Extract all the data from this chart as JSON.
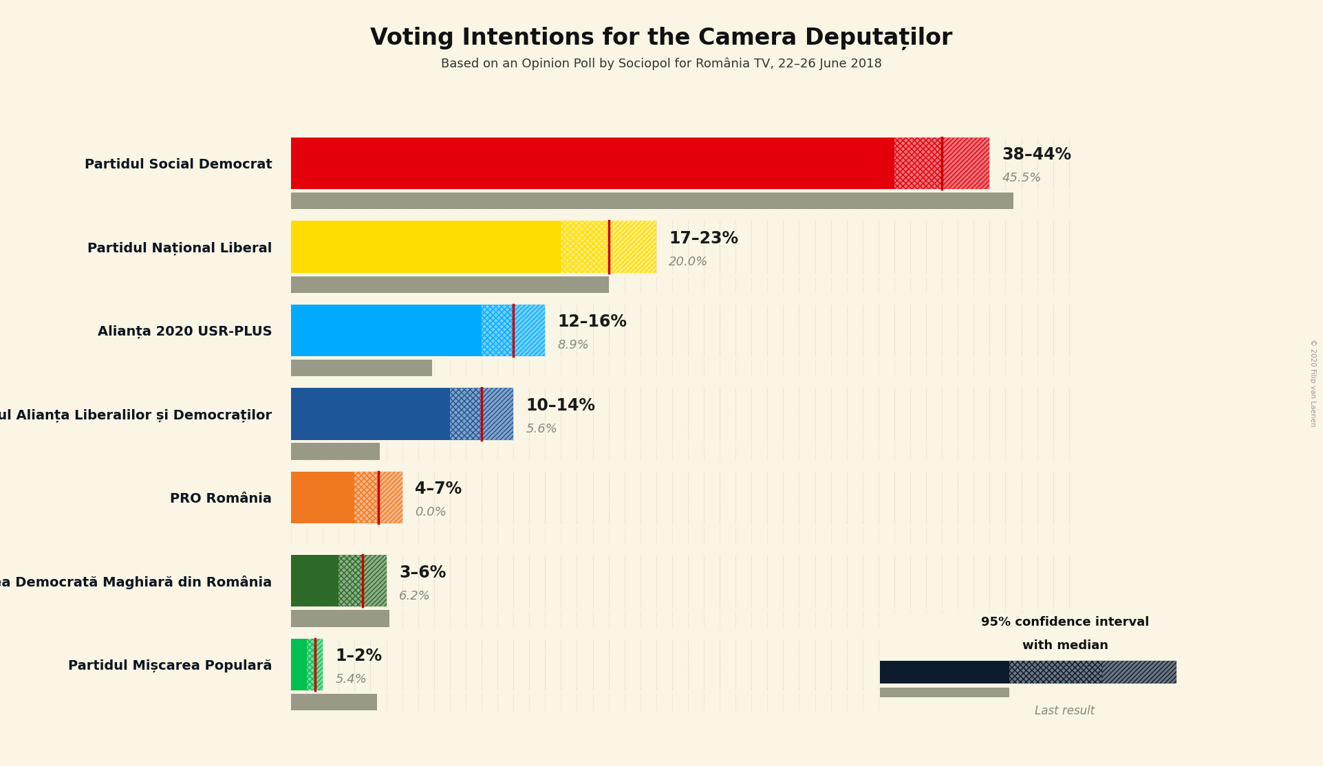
{
  "title": "Voting Intentions for the Camera Deputaților",
  "subtitle": "Based on an Opinion Poll by Sociopol for România TV, 22–26 June 2018",
  "copyright": "© 2020 Filip van Laenen",
  "background_color": "#faf5e4",
  "parties": [
    {
      "name": "Partidul Social Democrat",
      "color": "#e3000b",
      "ci_low": 38,
      "ci_high": 44,
      "median": 41,
      "last": 45.5,
      "label": "38–44%",
      "last_label": "45.5%"
    },
    {
      "name": "Partidul Național Liberal",
      "color": "#ffdd00",
      "ci_low": 17,
      "ci_high": 23,
      "median": 20,
      "last": 20.0,
      "label": "17–23%",
      "last_label": "20.0%"
    },
    {
      "name": "Alianța 2020 USR-PLUS",
      "color": "#00aaff",
      "ci_low": 12,
      "ci_high": 16,
      "median": 14,
      "last": 8.9,
      "label": "12–16%",
      "last_label": "8.9%"
    },
    {
      "name": "Partidul Alianța Liberalilor și Democraților",
      "color": "#1e5799",
      "ci_low": 10,
      "ci_high": 14,
      "median": 12,
      "last": 5.6,
      "label": "10–14%",
      "last_label": "5.6%"
    },
    {
      "name": "PRO România",
      "color": "#f07820",
      "ci_low": 4,
      "ci_high": 7,
      "median": 5.5,
      "last": 0.0,
      "label": "4–7%",
      "last_label": "0.0%"
    },
    {
      "name": "Uniunea Democrată Maghiară din România",
      "color": "#2d6a27",
      "ci_low": 3,
      "ci_high": 6,
      "median": 4.5,
      "last": 6.2,
      "label": "3–6%",
      "last_label": "6.2%"
    },
    {
      "name": "Partidul Mișcarea Populară",
      "color": "#00c050",
      "ci_low": 1,
      "ci_high": 2,
      "median": 1.5,
      "last": 5.4,
      "label": "1–2%",
      "last_label": "5.4%"
    }
  ],
  "x_max": 50,
  "bar_height": 0.62,
  "last_bar_height": 0.2,
  "median_line_color": "#cc0000",
  "last_bar_color": "#999988",
  "dot_color": "#999999",
  "legend_dark_color": "#0d1b2e"
}
